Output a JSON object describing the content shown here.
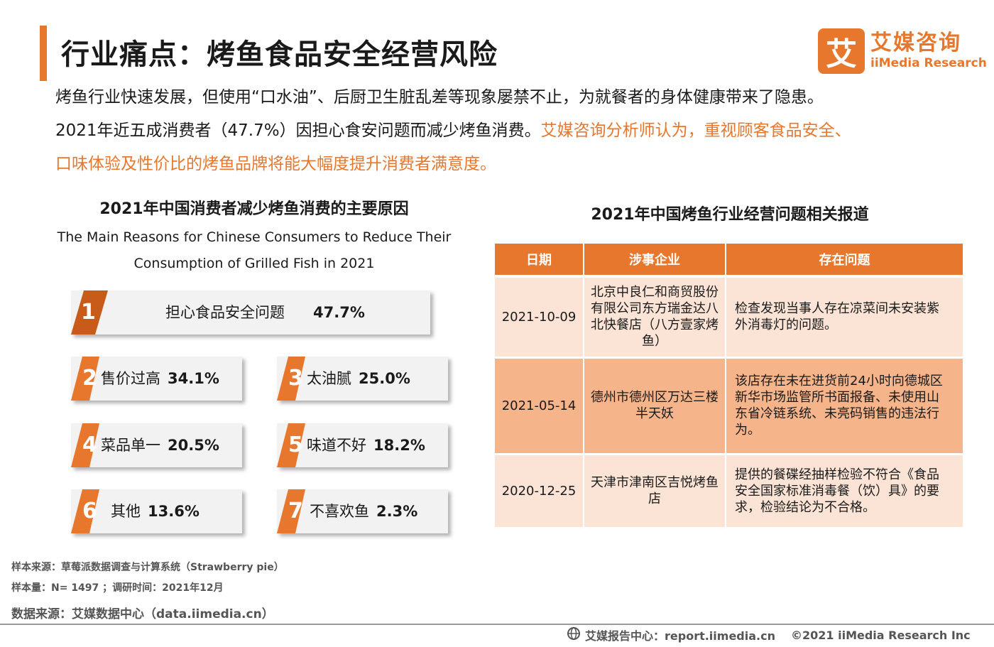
{
  "header": {
    "title": "行业痛点：烤鱼食品安全经营风险"
  },
  "logo": {
    "mark": "艾",
    "name_cn": "艾媒咨询",
    "name_en": "iiMedia Research"
  },
  "intro": {
    "line1": "烤鱼行业快速发展，但使用“口水油”、后厨卫生脏乱差等现象屡禁不止，为就餐者的身体健康带来了隐患。",
    "line2_plain": "2021年近五成消费者（47.7%）因担心食安问题而减少烤鱼消费。",
    "line2_highlight": "艾媒咨询分析师认为，重视顾客食品安全、",
    "line3_highlight": "口味体验及性价比的烤鱼品牌将能大幅度提升消费者满意度。"
  },
  "left_panel": {
    "title_cn": "2021年中国消费者减少烤鱼消费的主要原因",
    "title_en_1": "The Main Reasons for Chinese Consumers to Reduce Their",
    "title_en_2": "Consumption of Grilled Fish in 2021",
    "reasons": [
      {
        "rank": "1",
        "label": "担心食品安全问题",
        "value": "47.7%",
        "share": 47.7
      },
      {
        "rank": "2",
        "label": "售价过高",
        "value": "34.1%",
        "share": 34.1
      },
      {
        "rank": "3",
        "label": "太油腻",
        "value": "25.0%",
        "share": 25.0
      },
      {
        "rank": "4",
        "label": "菜品单一",
        "value": "20.5%",
        "share": 20.5
      },
      {
        "rank": "5",
        "label": "味道不好",
        "value": "18.2%",
        "share": 18.2
      },
      {
        "rank": "6",
        "label": "其他",
        "value": "13.6%",
        "share": 13.6
      },
      {
        "rank": "7",
        "label": "不喜欢鱼",
        "value": "2.3%",
        "share": 2.3
      }
    ]
  },
  "right_panel": {
    "title": "2021年中国烤鱼行业经营问题相关报道",
    "headers": [
      "日期",
      "涉事企业",
      "存在问题"
    ],
    "rows": [
      {
        "date": "2021-10-09",
        "company": "北京中良仁和商贸股份有限公司东方瑞金达八北快餐店（八方壹家烤鱼）",
        "issue": "检查发现当事人存在凉菜间未安装紫外消毒灯的问题。"
      },
      {
        "date": "2021-05-14",
        "company": "德州市德州区万达三楼半天妖",
        "issue": "该店存在未在进货前24小时向德城区新华市场监管所书面报备、未使用山东省冷链系统、未亮码销售的违法行为。"
      },
      {
        "date": "2020-12-25",
        "company": "天津市津南区吉悦烤鱼店",
        "issue": "提供的餐碟经抽样检验不符合《食品安全国家标准消毒餐（饮）具》的要求，检验结论为不合格。"
      }
    ]
  },
  "sources": {
    "sample_source": "样本来源：草莓派数据调查与计算系统（Strawberry pie）",
    "sample_size": "样本量：N= 1497 ；调研时间：2021年12月",
    "data_source": "数据来源：艾媒数据中心（data.iimedia.cn）"
  },
  "footer": {
    "report_center": "艾媒报告中心：report.iimedia.cn",
    "copyright": "©2021  iiMedia Research  Inc"
  },
  "colors": {
    "accent": "#e8772e",
    "accent_dark": "#c85a1a",
    "row_light": "#fbe4d6",
    "row_mid": "#f5b48a"
  }
}
